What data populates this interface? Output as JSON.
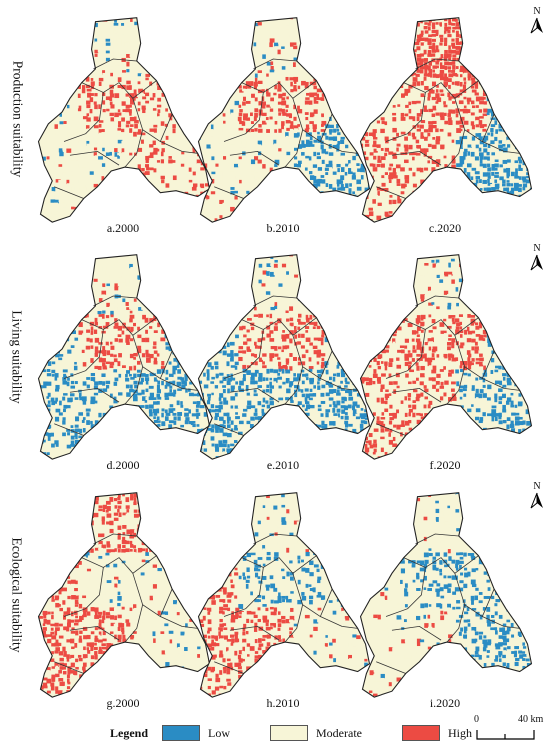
{
  "rows": [
    {
      "title": "Production suitability",
      "panels": [
        "a.2000",
        "b.2010",
        "c.2020"
      ]
    },
    {
      "title": "Living suitability",
      "panels": [
        "d.2000",
        "e.2010",
        "f.2020"
      ]
    },
    {
      "title": "Ecological suitability",
      "panels": [
        "g.2000",
        "h.2010",
        "i.2020"
      ]
    }
  ],
  "north_label": "N",
  "legend": {
    "title": "Legend",
    "items": [
      {
        "label": "Low",
        "color": "#2a8cc4"
      },
      {
        "label": "Moderate",
        "color": "#f7f5d7"
      },
      {
        "label": "High",
        "color": "#ec4b43"
      }
    ]
  },
  "scale_bar": {
    "start": "0",
    "end": "40 km"
  }
}
